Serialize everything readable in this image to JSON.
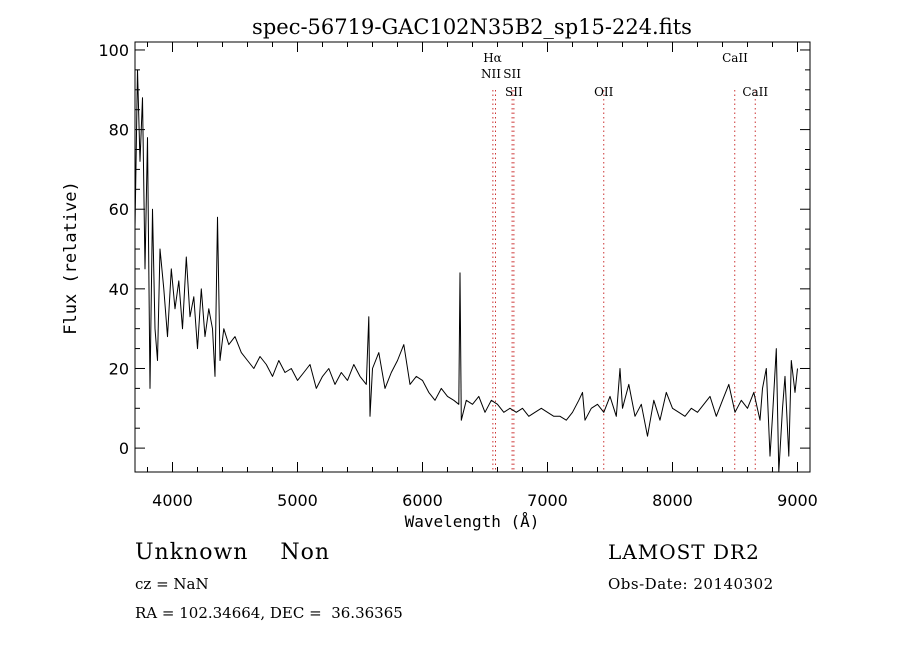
{
  "chart_data": {
    "type": "line",
    "title": "spec-56719-GAC102N35B2_sp15-224.fits",
    "xlabel": "Wavelength (Å)",
    "ylabel": "Flux (relative)",
    "xlim": [
      3700,
      9100
    ],
    "ylim": [
      -6,
      102
    ],
    "xticks": [
      4000,
      5000,
      6000,
      7000,
      8000,
      9000
    ],
    "yticks": [
      0,
      20,
      40,
      60,
      80,
      100
    ],
    "xtick_labels": [
      "4000",
      "5000",
      "6000",
      "7000",
      "8000",
      "9000"
    ],
    "ytick_labels": [
      "0",
      "20",
      "40",
      "60",
      "80",
      "100"
    ],
    "series": [
      {
        "color": "#000000",
        "x": [
          3700,
          3720,
          3740,
          3760,
          3780,
          3800,
          3820,
          3840,
          3860,
          3880,
          3900,
          3930,
          3960,
          3990,
          4020,
          4050,
          4080,
          4110,
          4140,
          4170,
          4200,
          4230,
          4260,
          4290,
          4320,
          4340,
          4360,
          4380,
          4410,
          4450,
          4500,
          4550,
          4600,
          4650,
          4700,
          4750,
          4800,
          4850,
          4900,
          4950,
          5000,
          5050,
          5100,
          5150,
          5200,
          5250,
          5300,
          5350,
          5400,
          5450,
          5500,
          5550,
          5570,
          5580,
          5600,
          5650,
          5700,
          5750,
          5800,
          5850,
          5900,
          5950,
          6000,
          6050,
          6100,
          6150,
          6200,
          6250,
          6290,
          6300,
          6310,
          6350,
          6400,
          6450,
          6500,
          6550,
          6600,
          6650,
          6700,
          6750,
          6800,
          6850,
          6900,
          6950,
          7000,
          7050,
          7100,
          7150,
          7200,
          7250,
          7280,
          7300,
          7350,
          7400,
          7450,
          7500,
          7550,
          7580,
          7600,
          7650,
          7700,
          7750,
          7800,
          7850,
          7900,
          7950,
          8000,
          8050,
          8100,
          8150,
          8200,
          8250,
          8300,
          8350,
          8400,
          8450,
          8500,
          8550,
          8600,
          8650,
          8700,
          8720,
          8750,
          8780,
          8800,
          8830,
          8850,
          8880,
          8900,
          8930,
          8950,
          8980,
          9000
        ],
        "y": [
          55,
          95,
          72,
          88,
          45,
          78,
          15,
          60,
          30,
          22,
          50,
          40,
          28,
          45,
          35,
          42,
          30,
          48,
          33,
          38,
          25,
          40,
          28,
          35,
          30,
          18,
          58,
          22,
          30,
          26,
          28,
          24,
          22,
          20,
          23,
          21,
          18,
          22,
          19,
          20,
          17,
          19,
          21,
          15,
          18,
          20,
          16,
          19,
          17,
          21,
          18,
          16,
          33,
          8,
          20,
          24,
          15,
          19,
          22,
          26,
          16,
          18,
          17,
          14,
          12,
          15,
          13,
          12,
          11,
          44,
          7,
          12,
          11,
          13,
          9,
          12,
          11,
          9,
          10,
          9,
          10,
          8,
          9,
          10,
          9,
          8,
          8,
          7,
          9,
          12,
          14,
          7,
          10,
          11,
          9,
          13,
          8,
          20,
          10,
          16,
          8,
          11,
          3,
          12,
          7,
          14,
          10,
          9,
          8,
          10,
          9,
          11,
          13,
          8,
          12,
          16,
          9,
          12,
          10,
          14,
          7,
          15,
          20,
          -2,
          8,
          25,
          -6,
          10,
          18,
          -2,
          22,
          14,
          20
        ]
      }
    ],
    "reference_lines": [
      {
        "x": 6563
      },
      {
        "x": 6584
      },
      {
        "x": 6717
      },
      {
        "x": 6731
      },
      {
        "x": 7450
      },
      {
        "x": 8498
      },
      {
        "x": 8662
      }
    ],
    "line_labels": [
      {
        "text": "Hα",
        "x": 6560,
        "row": 1
      },
      {
        "text": "NII",
        "x": 6548,
        "row": 2
      },
      {
        "text": "SII",
        "x": 6717,
        "row": 2
      },
      {
        "text": "SII",
        "x": 6731,
        "row": 3
      },
      {
        "text": "OII",
        "x": 7450,
        "row": 3
      },
      {
        "text": "CaII",
        "x": 8500,
        "row": 1
      },
      {
        "text": "CaII",
        "x": 8662,
        "row": 3
      }
    ]
  },
  "info": {
    "object_class": "Unknown    Non",
    "survey": "LAMOST DR2",
    "redshift": "cz = NaN",
    "obs_date": "Obs-Date: 20140302",
    "coordinates": "RA = 102.34664, DEC =  36.36365"
  },
  "colors": {
    "spectrum": "#000000",
    "reference_line": "#cc3333",
    "axes": "#000000"
  }
}
